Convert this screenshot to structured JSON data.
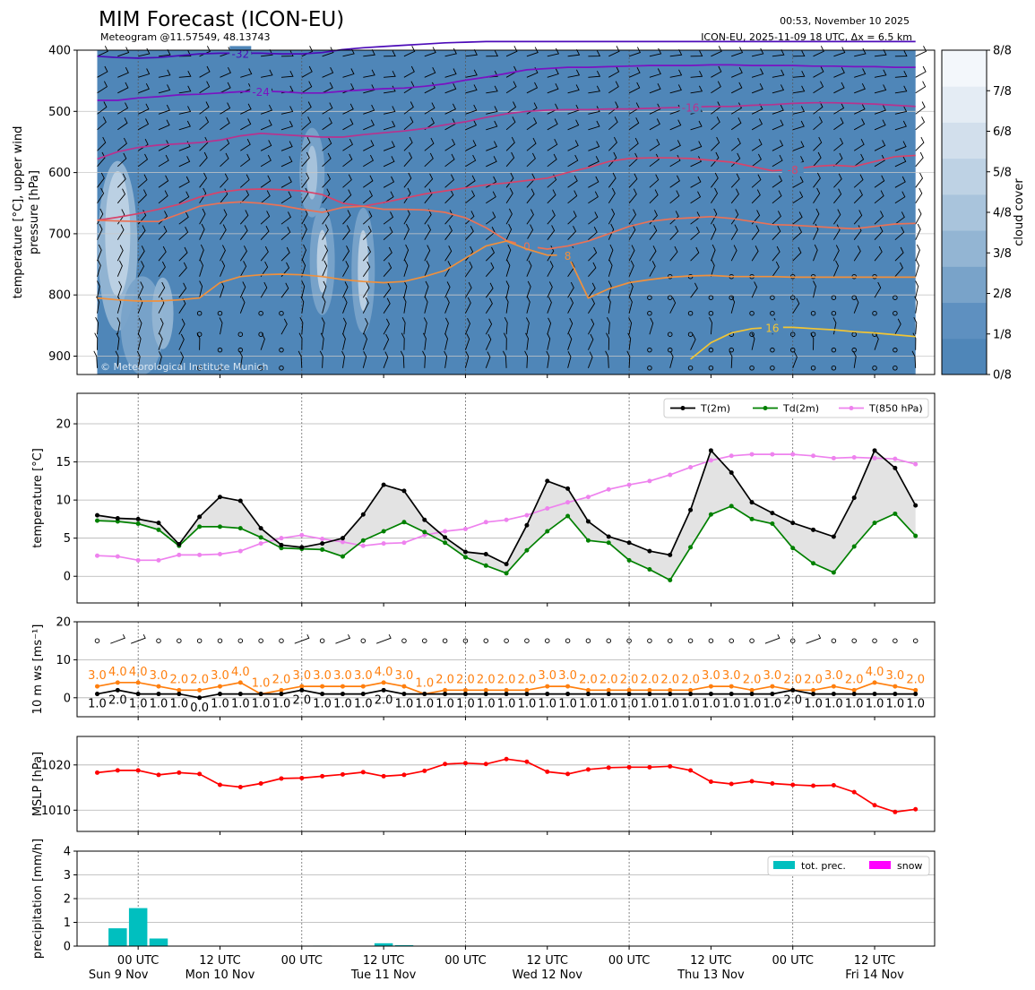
{
  "header": {
    "title": "MIM Forecast (ICON-EU)",
    "subtitle": "Meteogram @11.57549, 48.13743",
    "issued": "00:53, November 10 2025",
    "run_info": "ICON-EU, 2025-11-09 18 UTC, Δx = 6.5 km",
    "copyright": "© Meteorological Institute Munich"
  },
  "x_axis": {
    "tick_labels": [
      {
        "t": 6,
        "line1": "00 UTC",
        "line2": "Sun 9 Nov"
      },
      {
        "t": 18,
        "line1": "12 UTC",
        "line2": "Mon 10 Nov"
      },
      {
        "t": 30,
        "line1": "00 UTC",
        "line2": ""
      },
      {
        "t": 42,
        "line1": "12 UTC",
        "line2": "Tue 11 Nov"
      },
      {
        "t": 54,
        "line1": "00 UTC",
        "line2": ""
      },
      {
        "t": 66,
        "line1": "12 UTC",
        "line2": "Wed 12 Nov"
      },
      {
        "t": 78,
        "line1": "00 UTC",
        "line2": ""
      },
      {
        "t": 90,
        "line1": "12 UTC",
        "line2": "Thu 13 Nov"
      },
      {
        "t": 102,
        "line1": "00 UTC",
        "line2": ""
      },
      {
        "t": 114,
        "line1": "12 UTC",
        "line2": "Fri 14 Nov"
      }
    ]
  },
  "chart_data": [
    {
      "type": "heatmap",
      "name": "upper-air",
      "ylabel": "temperature [°C], upper wind\npressure [hPa]",
      "yticks": [
        400,
        500,
        600,
        700,
        800,
        900
      ],
      "ylim": [
        930,
        400
      ],
      "colorbar": {
        "label": "cloud cover",
        "ticks": [
          "0/8",
          "1/8",
          "2/8",
          "3/8",
          "4/8",
          "5/8",
          "6/8",
          "7/8",
          "8/8"
        ],
        "colors": [
          "#4f86b8",
          "#5e90c0",
          "#79a3c9",
          "#93b5d3",
          "#a9c4dc",
          "#bed2e4",
          "#d2dfec",
          "#e4ecf4",
          "#f3f7fb"
        ]
      },
      "isotherms": [
        {
          "label": "-32",
          "color": "#4c0bb8",
          "p": [
            410,
            412,
            413,
            412,
            409,
            406,
            405,
            405,
            405,
            406,
            406,
            404,
            399,
            396,
            394,
            392,
            390,
            388,
            387,
            386,
            386,
            386,
            386,
            386,
            386,
            386,
            386,
            386,
            386,
            386,
            386,
            386,
            386,
            386,
            386,
            386,
            386,
            386,
            386,
            386,
            386
          ]
        },
        {
          "label": "-24",
          "color": "#7a12c2",
          "p": [
            482,
            482,
            478,
            476,
            473,
            472,
            470,
            468,
            467,
            468,
            470,
            470,
            467,
            465,
            463,
            462,
            459,
            455,
            449,
            444,
            438,
            432,
            430,
            428,
            428,
            427,
            426,
            425,
            425,
            425,
            424,
            424,
            425,
            425,
            425,
            426,
            426,
            427,
            427,
            428,
            428
          ]
        },
        {
          "label": "-16",
          "color": "#b8328e",
          "p": [
            578,
            566,
            559,
            555,
            553,
            551,
            547,
            540,
            536,
            538,
            540,
            542,
            542,
            538,
            535,
            532,
            528,
            522,
            517,
            510,
            504,
            500,
            498,
            497,
            497,
            496,
            496,
            495,
            494,
            493,
            492,
            492,
            490,
            489,
            487,
            486,
            486,
            487,
            488,
            490,
            492
          ]
        },
        {
          "label": "-8",
          "color": "#d8436a",
          "p": [
            678,
            673,
            667,
            660,
            652,
            640,
            632,
            628,
            627,
            628,
            630,
            636,
            650,
            655,
            649,
            642,
            635,
            630,
            625,
            620,
            617,
            613,
            609,
            600,
            592,
            582,
            577,
            576,
            576,
            577,
            580,
            583,
            590,
            597,
            595,
            590,
            588,
            590,
            582,
            574,
            572
          ]
        },
        {
          "label": "0",
          "color": "#ea7256",
          "p": [
            678,
            679,
            680,
            680,
            668,
            655,
            650,
            648,
            650,
            654,
            660,
            665,
            657,
            655,
            660,
            660,
            661,
            665,
            674,
            690,
            711,
            720,
            725,
            720,
            712,
            700,
            688,
            680,
            676,
            674,
            672,
            675,
            680,
            685,
            686,
            688,
            690,
            692,
            688,
            684,
            683
          ]
        },
        {
          "label": "8",
          "color": "#f0903c",
          "p": [
            805,
            808,
            810,
            810,
            808,
            805,
            780,
            770,
            767,
            766,
            767,
            770,
            775,
            778,
            780,
            778,
            770,
            760,
            740,
            720,
            712,
            725,
            735,
            735,
            805,
            790,
            780,
            775,
            771,
            769,
            768,
            770,
            770,
            770,
            771,
            771,
            771,
            771,
            771,
            771,
            771
          ]
        },
        {
          "label": "16",
          "color": "#f2c534",
          "p": [
            null,
            null,
            null,
            null,
            null,
            null,
            null,
            null,
            null,
            null,
            null,
            null,
            null,
            null,
            null,
            null,
            null,
            null,
            null,
            null,
            null,
            null,
            null,
            null,
            null,
            null,
            null,
            null,
            null,
            905,
            878,
            862,
            855,
            853,
            853,
            855,
            857,
            860,
            862,
            865,
            868
          ]
        }
      ]
    },
    {
      "type": "line",
      "name": "surface-temperature",
      "ylabel": "temperature [°C]",
      "ylim": [
        -3.5,
        24
      ],
      "yticks": [
        0,
        5,
        10,
        15,
        20
      ],
      "series": [
        {
          "name": "T(2m)",
          "color": "#000000",
          "values": [
            8.0,
            7.6,
            7.5,
            7.0,
            4.2,
            7.8,
            10.4,
            9.9,
            6.3,
            4.1,
            3.8,
            4.3,
            5.0,
            8.1,
            12.0,
            11.2,
            7.4,
            5.1,
            3.2,
            2.9,
            1.6,
            6.7,
            12.5,
            11.5,
            7.2,
            5.2,
            4.4,
            3.3,
            2.8,
            8.7,
            16.5,
            13.6,
            9.7,
            8.3,
            7.0,
            6.1,
            5.2,
            10.3,
            16.5,
            14.2,
            9.3
          ]
        },
        {
          "name": "Td(2m)",
          "color": "#008000",
          "values": [
            7.3,
            7.2,
            6.9,
            6.1,
            4.0,
            6.5,
            6.5,
            6.3,
            5.1,
            3.7,
            3.6,
            3.5,
            2.6,
            4.7,
            5.9,
            7.1,
            5.8,
            4.4,
            2.5,
            1.4,
            0.4,
            3.4,
            5.9,
            7.9,
            4.7,
            4.4,
            2.1,
            0.9,
            -0.5,
            3.8,
            8.1,
            9.2,
            7.5,
            6.9,
            3.7,
            1.7,
            0.5,
            3.9,
            7.0,
            8.2,
            5.3
          ]
        },
        {
          "name": "T(850 hPa)",
          "color": "#ee82ee",
          "values": [
            2.7,
            2.6,
            2.1,
            2.1,
            2.8,
            2.8,
            2.9,
            3.3,
            4.3,
            5.0,
            5.4,
            4.9,
            4.5,
            4.0,
            4.3,
            4.4,
            5.4,
            5.9,
            6.2,
            7.1,
            7.4,
            8.0,
            8.9,
            9.7,
            10.4,
            11.4,
            12.0,
            12.5,
            13.3,
            14.3,
            15.2,
            15.8,
            16.0,
            16.0,
            16.0,
            15.8,
            15.5,
            15.6,
            15.5,
            15.4,
            14.7
          ]
        }
      ]
    },
    {
      "type": "line",
      "name": "surface-wind",
      "ylabel": "10 m ws [ms⁻¹]",
      "ylim": [
        -5,
        20
      ],
      "yticks": [
        0,
        10,
        20
      ],
      "series": [
        {
          "name": "gust",
          "color": "#ff7f0e",
          "values": [
            3.0,
            4.0,
            4.0,
            3.0,
            2.0,
            2.0,
            3.0,
            4.0,
            1.0,
            2.0,
            3.0,
            3.0,
            3.0,
            3.0,
            4.0,
            3.0,
            1.0,
            2.0,
            2.0,
            2.0,
            2.0,
            2.0,
            3.0,
            3.0,
            2.0,
            2.0,
            2.0,
            2.0,
            2.0,
            2.0,
            3.0,
            3.0,
            2.0,
            3.0,
            2.0,
            2.0,
            3.0,
            2.0,
            4.0,
            3.0,
            2.0
          ]
        },
        {
          "name": "mean",
          "color": "#000000",
          "values": [
            1.0,
            2.0,
            1.0,
            1.0,
            1.0,
            0.0,
            1.0,
            1.0,
            1.0,
            1.0,
            2.0,
            1.0,
            1.0,
            1.0,
            2.0,
            1.0,
            1.0,
            1.0,
            1.0,
            1.0,
            1.0,
            1.0,
            1.0,
            1.0,
            1.0,
            1.0,
            1.0,
            1.0,
            1.0,
            1.0,
            1.0,
            1.0,
            1.0,
            1.0,
            2.0,
            1.0,
            1.0,
            1.0,
            1.0,
            1.0,
            1.0
          ]
        }
      ]
    },
    {
      "type": "line",
      "name": "mslp",
      "ylabel": "MSLP [hPa]",
      "ylim": [
        1005.3,
        1026.3
      ],
      "yticks": [
        1010,
        1020
      ],
      "series": [
        {
          "name": "MSLP",
          "color": "#ff0000",
          "values": [
            1018.3,
            1018.8,
            1018.8,
            1017.8,
            1018.3,
            1018.0,
            1015.6,
            1015.1,
            1015.9,
            1017.0,
            1017.1,
            1017.5,
            1017.9,
            1018.4,
            1017.5,
            1017.8,
            1018.7,
            1020.2,
            1020.4,
            1020.2,
            1021.3,
            1020.7,
            1018.5,
            1018.0,
            1019.0,
            1019.4,
            1019.5,
            1019.5,
            1019.7,
            1018.8,
            1016.3,
            1015.8,
            1016.4,
            1015.9,
            1015.6,
            1015.4,
            1015.5,
            1014.0,
            1011.1,
            1009.6,
            1010.2
          ]
        }
      ]
    },
    {
      "type": "bar",
      "name": "precipitation",
      "ylabel": "precipitation [mm/h]",
      "ylim": [
        0,
        4
      ],
      "yticks": [
        0,
        1,
        2,
        3,
        4
      ],
      "series": [
        {
          "name": "tot. prec.",
          "color": "#00bfbf",
          "values": [
            0,
            0.75,
            1.6,
            0.32,
            0,
            0,
            0,
            0,
            0,
            0,
            0,
            0.02,
            0,
            0,
            0.12,
            0.04,
            0,
            0,
            0,
            0,
            0,
            0,
            0,
            0,
            0,
            0,
            0,
            0,
            0,
            0,
            0,
            0,
            0,
            0,
            0,
            0,
            0,
            0,
            0,
            0,
            0
          ]
        },
        {
          "name": "snow",
          "color": "#ff00ff",
          "values": [
            0,
            0,
            0,
            0,
            0,
            0,
            0,
            0,
            0,
            0,
            0,
            0,
            0,
            0,
            0,
            0,
            0,
            0,
            0,
            0,
            0,
            0,
            0,
            0,
            0,
            0,
            0,
            0,
            0,
            0,
            0,
            0,
            0,
            0,
            0,
            0,
            0,
            0,
            0,
            0,
            0
          ]
        }
      ]
    }
  ]
}
